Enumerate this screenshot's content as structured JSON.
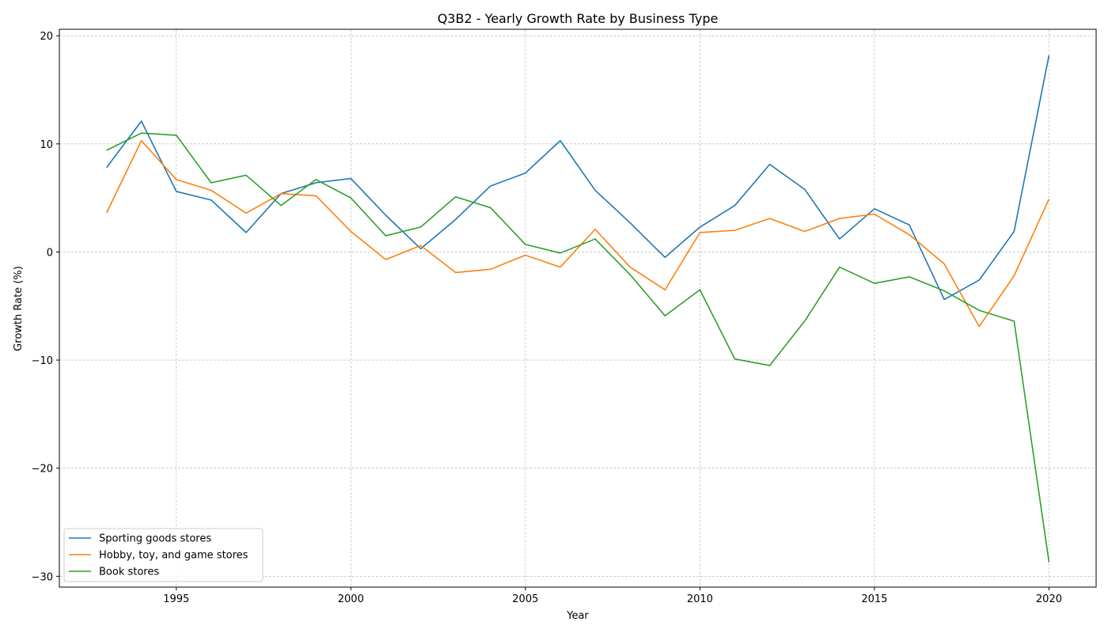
{
  "chart_data": {
    "type": "line",
    "title": "Q3B2 - Yearly Growth Rate by Business Type",
    "xlabel": "Year",
    "ylabel": "Growth Rate (%)",
    "xlim": [
      1991.65,
      2021.35
    ],
    "ylim": [
      -31.0,
      20.6
    ],
    "xticks": [
      1995,
      2000,
      2005,
      2010,
      2015,
      2020
    ],
    "yticks": [
      -30,
      -20,
      -10,
      0,
      10,
      20
    ],
    "ytick_labels": [
      "−30",
      "−20",
      "−10",
      "0",
      "10",
      "20"
    ],
    "grid": true,
    "legend_position": "lower-left",
    "x": [
      1993,
      1994,
      1995,
      1996,
      1997,
      1998,
      1999,
      2000,
      2001,
      2002,
      2003,
      2004,
      2005,
      2006,
      2007,
      2008,
      2009,
      2010,
      2011,
      2012,
      2013,
      2014,
      2015,
      2016,
      2017,
      2018,
      2019,
      2020
    ],
    "series": [
      {
        "name": "Sporting goods stores",
        "color": "#1f77b4",
        "values": [
          7.8,
          12.1,
          5.6,
          4.8,
          1.8,
          5.4,
          6.4,
          6.8,
          3.4,
          0.3,
          3.0,
          6.1,
          7.3,
          10.3,
          5.7,
          2.7,
          -0.5,
          2.3,
          4.3,
          8.1,
          5.8,
          1.2,
          4.0,
          2.5,
          -4.4,
          -2.6,
          1.9,
          18.2
        ]
      },
      {
        "name": "Hobby, toy, and game stores",
        "color": "#ff7f0e",
        "values": [
          3.6,
          10.3,
          6.7,
          5.7,
          3.6,
          5.4,
          5.2,
          1.9,
          -0.7,
          0.6,
          -1.9,
          -1.6,
          -0.3,
          -1.4,
          2.1,
          -1.4,
          -3.5,
          1.8,
          2.0,
          3.1,
          1.9,
          3.1,
          3.5,
          1.6,
          -1.1,
          -6.9,
          -2.2,
          4.9
        ]
      },
      {
        "name": "Book stores",
        "color": "#2ca02c",
        "values": [
          9.4,
          11.0,
          10.8,
          6.4,
          7.1,
          4.3,
          6.7,
          5.0,
          1.5,
          2.3,
          5.1,
          4.1,
          0.7,
          -0.1,
          1.2,
          -2.1,
          -5.9,
          -3.5,
          -9.9,
          -10.5,
          -6.4,
          -1.4,
          -2.9,
          -2.3,
          -3.6,
          -5.4,
          -6.4,
          -28.7
        ]
      }
    ]
  }
}
